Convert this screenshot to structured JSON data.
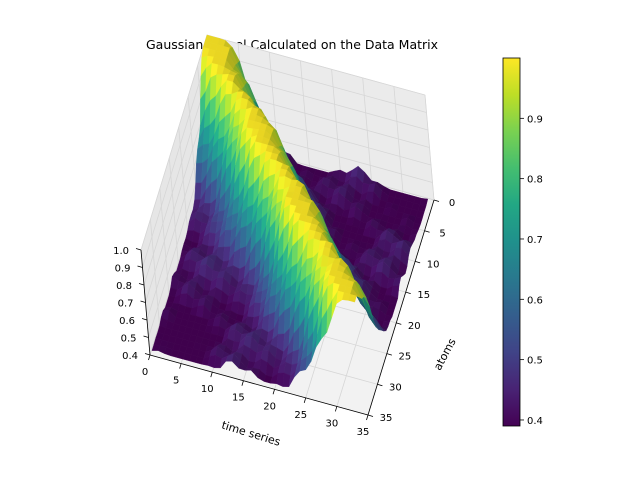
{
  "chart_data": {
    "type": "surface3d",
    "title": "Gaussian Kernel Calculated on the Data Matrix",
    "xlabel": "time series",
    "ylabel": "atoms",
    "zlabel": "",
    "x_range": [
      0,
      35
    ],
    "y_range": [
      0,
      35
    ],
    "z_range": [
      0.4,
      1.0
    ],
    "x_ticks": [
      0,
      5,
      10,
      15,
      20,
      25,
      30,
      35
    ],
    "y_ticks": [
      0,
      5,
      10,
      15,
      20,
      25,
      30,
      35
    ],
    "z_ticks": [
      1.0,
      0.9,
      0.8,
      0.7,
      0.6,
      0.5,
      0.4
    ],
    "x_tick_labels": [
      "0",
      "5",
      "10",
      "15",
      "20",
      "25",
      "30",
      "35"
    ],
    "y_tick_labels": [
      "0",
      "5",
      "10",
      "15",
      "20",
      "25",
      "30",
      "35"
    ],
    "z_tick_labels": [
      "1.0",
      "0.9",
      "0.8",
      "0.7",
      "0.6",
      "0.5",
      "0.4"
    ],
    "grid": true,
    "colormap": "viridis",
    "colorbar": {
      "min": 0.39,
      "max": 1.0,
      "ticks": [
        0.9,
        0.8,
        0.7,
        0.6,
        0.5,
        0.4
      ],
      "tick_labels": [
        "0.9",
        "0.8",
        "0.7",
        "0.6",
        "0.5",
        "0.4"
      ]
    },
    "surface_description": {
      "ridge_at": "x = y (diagonal)",
      "ridge_value": 1.0,
      "min_value": 0.39,
      "grid_size": 35
    }
  }
}
